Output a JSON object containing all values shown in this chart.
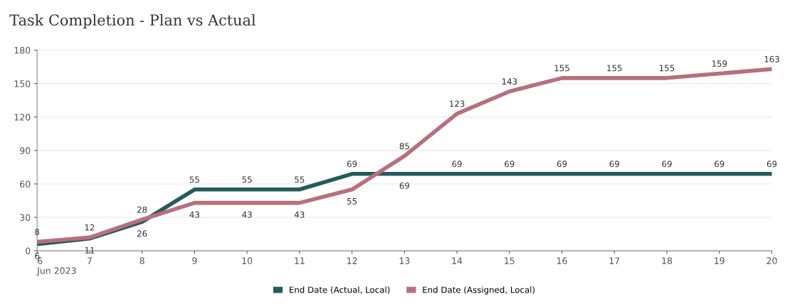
{
  "chart_data": {
    "type": "line",
    "title": "Task Completion - Plan vs Actual",
    "x": [
      "2023-06-06",
      "2023-06-07",
      "2023-06-08",
      "2023-06-09",
      "2023-06-10",
      "2023-06-11",
      "2023-06-12",
      "2023-06-13",
      "2023-06-14",
      "2023-06-15",
      "2023-06-16",
      "2023-06-17",
      "2023-06-18",
      "2023-06-19",
      "2023-06-20"
    ],
    "series": [
      {
        "name": "End Date (Actual, Local)",
        "color": "#245c5c",
        "values": [
          6,
          11,
          26,
          55,
          55,
          55,
          69,
          69,
          69,
          69,
          69,
          69,
          69,
          69,
          69
        ]
      },
      {
        "name": "End Date (Assigned, Local)",
        "color": "#b8707c",
        "values": [
          8,
          12,
          28,
          43,
          43,
          43,
          55,
          85,
          123,
          143,
          155,
          155,
          155,
          159,
          163
        ]
      }
    ],
    "xlim": [
      "2023-06-06",
      "2023-06-20"
    ],
    "xticks": [
      {
        "value": "2023-06-06",
        "label": "6\nJun 2023"
      },
      {
        "value": "2023-06-07",
        "label": "7"
      },
      {
        "value": "2023-06-08",
        "label": "8"
      },
      {
        "value": "2023-06-09",
        "label": "9"
      },
      {
        "value": "2023-06-10",
        "label": "10"
      },
      {
        "value": "2023-06-11",
        "label": "11"
      },
      {
        "value": "2023-06-12",
        "label": "12"
      },
      {
        "value": "2023-06-13",
        "label": "13"
      },
      {
        "value": "2023-06-14",
        "label": "14"
      },
      {
        "value": "2023-06-15",
        "label": "15"
      },
      {
        "value": "2023-06-16",
        "label": "16"
      },
      {
        "value": "2023-06-17",
        "label": "17"
      },
      {
        "value": "2023-06-18",
        "label": "18"
      },
      {
        "value": "2023-06-19",
        "label": "19"
      },
      {
        "value": "2023-06-20",
        "label": "20"
      }
    ],
    "ylim": [
      0,
      180
    ],
    "yticks": [
      0,
      30,
      60,
      90,
      120,
      150,
      180
    ],
    "grid": "y",
    "legend": "bottom",
    "data_labels": true,
    "marker": "none",
    "line_style": "solid"
  }
}
